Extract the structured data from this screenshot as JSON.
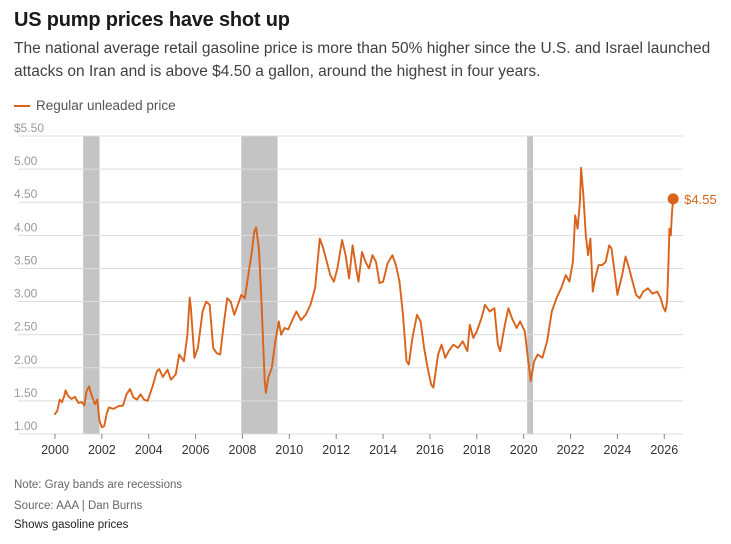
{
  "title": "US pump prices have shot up",
  "subtitle": "The national average retail gasoline price is more than 50% higher since the U.S. and Israel launched attacks on Iran and is above $4.50 a gallon, around the highest in four years.",
  "colors": {
    "line": "#d9631b",
    "recession": "#c4c4c4",
    "grid": "#dddddd"
  },
  "footer": {
    "note": "Note: Gray bands are recessions",
    "source": "Source: AAA | Dan Burns",
    "caption": "Shows gasoline prices"
  },
  "chart_data": {
    "type": "line",
    "title": "US pump prices have shot up",
    "xlabel": "",
    "ylabel": "",
    "xlim": [
      2000,
      2026.8
    ],
    "ylim": [
      1.0,
      5.5
    ],
    "grid": true,
    "legend_placement": "top-left",
    "y_ticks": [
      {
        "value": 1.0,
        "label": "1.00"
      },
      {
        "value": 1.5,
        "label": "1.50"
      },
      {
        "value": 2.0,
        "label": "2.00"
      },
      {
        "value": 2.5,
        "label": "2.50"
      },
      {
        "value": 3.0,
        "label": "3.00"
      },
      {
        "value": 3.5,
        "label": "3.50"
      },
      {
        "value": 4.0,
        "label": "4.00"
      },
      {
        "value": 4.5,
        "label": "4.50"
      },
      {
        "value": 5.0,
        "label": "5.00"
      },
      {
        "value": 5.5,
        "label": "$5.50"
      }
    ],
    "x_ticks": [
      {
        "value": 2000,
        "label": "2000"
      },
      {
        "value": 2002,
        "label": "2002"
      },
      {
        "value": 2004,
        "label": "2004"
      },
      {
        "value": 2006,
        "label": "2006"
      },
      {
        "value": 2008,
        "label": "2008"
      },
      {
        "value": 2010,
        "label": "2010"
      },
      {
        "value": 2012,
        "label": "2012"
      },
      {
        "value": 2014,
        "label": "2014"
      },
      {
        "value": 2016,
        "label": "2016"
      },
      {
        "value": 2018,
        "label": "2018"
      },
      {
        "value": 2020,
        "label": "2020"
      },
      {
        "value": 2022,
        "label": "2022"
      },
      {
        "value": 2024,
        "label": "2024"
      },
      {
        "value": 2026,
        "label": "2026"
      }
    ],
    "recessions": [
      {
        "start": 2001.2,
        "end": 2001.9
      },
      {
        "start": 2007.95,
        "end": 2009.5
      },
      {
        "start": 2020.15,
        "end": 2020.4
      }
    ],
    "series": [
      {
        "name": "Regular unleaded price",
        "points": [
          [
            2000.0,
            1.3
          ],
          [
            2000.1,
            1.35
          ],
          [
            2000.2,
            1.52
          ],
          [
            2000.3,
            1.48
          ],
          [
            2000.4,
            1.58
          ],
          [
            2000.45,
            1.66
          ],
          [
            2000.55,
            1.58
          ],
          [
            2000.7,
            1.53
          ],
          [
            2000.85,
            1.56
          ],
          [
            2001.0,
            1.47
          ],
          [
            2001.15,
            1.48
          ],
          [
            2001.25,
            1.43
          ],
          [
            2001.35,
            1.65
          ],
          [
            2001.45,
            1.72
          ],
          [
            2001.55,
            1.6
          ],
          [
            2001.7,
            1.45
          ],
          [
            2001.8,
            1.52
          ],
          [
            2001.9,
            1.2
          ],
          [
            2002.0,
            1.1
          ],
          [
            2002.1,
            1.12
          ],
          [
            2002.2,
            1.3
          ],
          [
            2002.3,
            1.4
          ],
          [
            2002.5,
            1.38
          ],
          [
            2002.7,
            1.42
          ],
          [
            2002.9,
            1.43
          ],
          [
            2003.05,
            1.6
          ],
          [
            2003.2,
            1.68
          ],
          [
            2003.35,
            1.55
          ],
          [
            2003.5,
            1.52
          ],
          [
            2003.65,
            1.6
          ],
          [
            2003.8,
            1.52
          ],
          [
            2003.95,
            1.5
          ],
          [
            2004.15,
            1.7
          ],
          [
            2004.35,
            1.95
          ],
          [
            2004.45,
            1.98
          ],
          [
            2004.6,
            1.86
          ],
          [
            2004.8,
            1.97
          ],
          [
            2004.95,
            1.82
          ],
          [
            2005.15,
            1.9
          ],
          [
            2005.3,
            2.2
          ],
          [
            2005.5,
            2.1
          ],
          [
            2005.65,
            2.5
          ],
          [
            2005.75,
            3.06
          ],
          [
            2005.8,
            2.9
          ],
          [
            2005.95,
            2.15
          ],
          [
            2006.1,
            2.3
          ],
          [
            2006.3,
            2.85
          ],
          [
            2006.45,
            3.0
          ],
          [
            2006.6,
            2.95
          ],
          [
            2006.75,
            2.3
          ],
          [
            2006.9,
            2.22
          ],
          [
            2007.05,
            2.2
          ],
          [
            2007.2,
            2.65
          ],
          [
            2007.35,
            3.05
          ],
          [
            2007.5,
            3.0
          ],
          [
            2007.65,
            2.8
          ],
          [
            2007.8,
            2.95
          ],
          [
            2007.95,
            3.1
          ],
          [
            2008.1,
            3.05
          ],
          [
            2008.25,
            3.4
          ],
          [
            2008.4,
            3.75
          ],
          [
            2008.5,
            4.05
          ],
          [
            2008.58,
            4.12
          ],
          [
            2008.7,
            3.8
          ],
          [
            2008.8,
            3.1
          ],
          [
            2008.88,
            2.4
          ],
          [
            2008.95,
            1.8
          ],
          [
            2009.0,
            1.62
          ],
          [
            2009.1,
            1.85
          ],
          [
            2009.25,
            2.0
          ],
          [
            2009.4,
            2.4
          ],
          [
            2009.55,
            2.7
          ],
          [
            2009.65,
            2.5
          ],
          [
            2009.8,
            2.6
          ],
          [
            2009.95,
            2.58
          ],
          [
            2010.1,
            2.7
          ],
          [
            2010.3,
            2.85
          ],
          [
            2010.5,
            2.72
          ],
          [
            2010.7,
            2.8
          ],
          [
            2010.9,
            2.95
          ],
          [
            2011.1,
            3.2
          ],
          [
            2011.3,
            3.95
          ],
          [
            2011.45,
            3.8
          ],
          [
            2011.6,
            3.6
          ],
          [
            2011.75,
            3.4
          ],
          [
            2011.9,
            3.3
          ],
          [
            2012.05,
            3.5
          ],
          [
            2012.25,
            3.93
          ],
          [
            2012.4,
            3.7
          ],
          [
            2012.55,
            3.35
          ],
          [
            2012.7,
            3.85
          ],
          [
            2012.85,
            3.5
          ],
          [
            2012.95,
            3.3
          ],
          [
            2013.1,
            3.75
          ],
          [
            2013.25,
            3.6
          ],
          [
            2013.4,
            3.5
          ],
          [
            2013.55,
            3.7
          ],
          [
            2013.7,
            3.6
          ],
          [
            2013.85,
            3.28
          ],
          [
            2014.0,
            3.3
          ],
          [
            2014.2,
            3.58
          ],
          [
            2014.4,
            3.7
          ],
          [
            2014.55,
            3.55
          ],
          [
            2014.7,
            3.3
          ],
          [
            2014.85,
            2.8
          ],
          [
            2015.0,
            2.1
          ],
          [
            2015.1,
            2.05
          ],
          [
            2015.25,
            2.45
          ],
          [
            2015.45,
            2.8
          ],
          [
            2015.6,
            2.7
          ],
          [
            2015.75,
            2.3
          ],
          [
            2015.9,
            2.0
          ],
          [
            2016.05,
            1.75
          ],
          [
            2016.15,
            1.7
          ],
          [
            2016.35,
            2.2
          ],
          [
            2016.5,
            2.35
          ],
          [
            2016.65,
            2.15
          ],
          [
            2016.8,
            2.25
          ],
          [
            2017.0,
            2.35
          ],
          [
            2017.2,
            2.3
          ],
          [
            2017.4,
            2.4
          ],
          [
            2017.6,
            2.25
          ],
          [
            2017.7,
            2.65
          ],
          [
            2017.85,
            2.45
          ],
          [
            2018.0,
            2.55
          ],
          [
            2018.2,
            2.75
          ],
          [
            2018.35,
            2.95
          ],
          [
            2018.55,
            2.85
          ],
          [
            2018.75,
            2.9
          ],
          [
            2018.9,
            2.35
          ],
          [
            2019.0,
            2.25
          ],
          [
            2019.2,
            2.65
          ],
          [
            2019.35,
            2.9
          ],
          [
            2019.5,
            2.75
          ],
          [
            2019.7,
            2.6
          ],
          [
            2019.85,
            2.7
          ],
          [
            2020.05,
            2.55
          ],
          [
            2020.2,
            2.1
          ],
          [
            2020.3,
            1.8
          ],
          [
            2020.45,
            2.1
          ],
          [
            2020.6,
            2.2
          ],
          [
            2020.8,
            2.15
          ],
          [
            2021.0,
            2.4
          ],
          [
            2021.2,
            2.85
          ],
          [
            2021.4,
            3.05
          ],
          [
            2021.6,
            3.2
          ],
          [
            2021.8,
            3.4
          ],
          [
            2021.95,
            3.3
          ],
          [
            2022.1,
            3.6
          ],
          [
            2022.2,
            4.3
          ],
          [
            2022.3,
            4.1
          ],
          [
            2022.4,
            4.5
          ],
          [
            2022.45,
            5.02
          ],
          [
            2022.55,
            4.6
          ],
          [
            2022.65,
            4.0
          ],
          [
            2022.75,
            3.7
          ],
          [
            2022.85,
            3.95
          ],
          [
            2022.95,
            3.15
          ],
          [
            2023.05,
            3.35
          ],
          [
            2023.2,
            3.55
          ],
          [
            2023.35,
            3.55
          ],
          [
            2023.5,
            3.6
          ],
          [
            2023.65,
            3.85
          ],
          [
            2023.75,
            3.8
          ],
          [
            2023.9,
            3.4
          ],
          [
            2024.0,
            3.1
          ],
          [
            2024.2,
            3.4
          ],
          [
            2024.35,
            3.68
          ],
          [
            2024.5,
            3.5
          ],
          [
            2024.65,
            3.3
          ],
          [
            2024.8,
            3.1
          ],
          [
            2024.95,
            3.05
          ],
          [
            2025.1,
            3.15
          ],
          [
            2025.3,
            3.2
          ],
          [
            2025.5,
            3.12
          ],
          [
            2025.7,
            3.15
          ],
          [
            2025.85,
            3.05
          ],
          [
            2025.95,
            2.92
          ],
          [
            2026.05,
            2.85
          ],
          [
            2026.12,
            3.0
          ],
          [
            2026.18,
            3.6
          ],
          [
            2026.22,
            4.1
          ],
          [
            2026.28,
            4.0
          ],
          [
            2026.33,
            4.35
          ],
          [
            2026.38,
            4.55
          ]
        ],
        "end_label": "$4.55",
        "end_value": 4.55
      }
    ]
  }
}
